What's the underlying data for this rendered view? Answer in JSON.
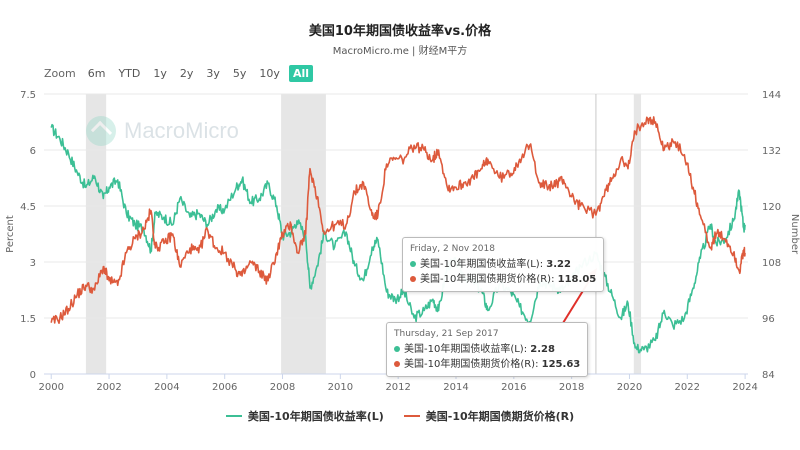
{
  "title": "美国10年期国债收益率vs.价格",
  "subtitle": "MacroMicro.me | 财经M平方",
  "watermark": "MacroMicro",
  "zoom": {
    "label": "Zoom",
    "buttons": [
      "6m",
      "YTD",
      "1y",
      "2y",
      "3y",
      "5y",
      "10y",
      "All"
    ],
    "active": "All"
  },
  "colors": {
    "yield": "#3cbf95",
    "price": "#dd5a3c",
    "recession": "#e6e6e6"
  },
  "tooltips": [
    {
      "date": "Friday, 2 Nov 2018",
      "rows": [
        {
          "label": "美国-10年期国债收益率(L): ",
          "value": "3.22"
        },
        {
          "label": "美国-10年期国债期货价格(R): ",
          "value": "118.05"
        }
      ]
    },
    {
      "date": "Thursday, 21 Sep 2017",
      "rows": [
        {
          "label": "美国-10年期国债收益率(L): ",
          "value": "2.28"
        },
        {
          "label": "美国-10年期国债期货价格(R): ",
          "value": "125.63"
        }
      ]
    }
  ],
  "chart_data": {
    "type": "line",
    "title": "美国10年期国债收益率vs.价格",
    "subtitle": "MacroMicro.me | 财经M平方",
    "ylabel_left": "Percent",
    "ylabel_right": "Number",
    "x_ticks": [
      "2000",
      "2002",
      "2004",
      "2006",
      "2008",
      "2010",
      "2012",
      "2014",
      "2016",
      "2018",
      "2020",
      "2022",
      "2024"
    ],
    "y_left_ticks": [
      "0",
      "1.5",
      "3",
      "4.5",
      "6",
      "7.5"
    ],
    "y_right_ticks": [
      "84",
      "96",
      "108",
      "120",
      "132",
      "144"
    ],
    "y_left_range": [
      0,
      7.5
    ],
    "y_right_range": [
      84,
      144
    ],
    "x_range": [
      1999.75,
      2024.1
    ],
    "recession_bands": [
      [
        2001.2,
        2001.9
      ],
      [
        2007.95,
        2009.5
      ],
      [
        2020.15,
        2020.4
      ]
    ],
    "legend_position": "bottom",
    "series": [
      {
        "name": "美国-10年期国债收益率(L)",
        "axis": "left",
        "points": [
          [
            2000.0,
            6.6
          ],
          [
            2000.3,
            6.3
          ],
          [
            2000.6,
            5.9
          ],
          [
            2000.9,
            5.4
          ],
          [
            2001.2,
            5.0
          ],
          [
            2001.5,
            5.3
          ],
          [
            2001.8,
            4.7
          ],
          [
            2002.0,
            5.0
          ],
          [
            2002.3,
            5.2
          ],
          [
            2002.6,
            4.3
          ],
          [
            2002.9,
            4.0
          ],
          [
            2003.2,
            3.9
          ],
          [
            2003.45,
            3.3
          ],
          [
            2003.6,
            4.3
          ],
          [
            2003.9,
            4.2
          ],
          [
            2004.2,
            4.0
          ],
          [
            2004.45,
            4.7
          ],
          [
            2004.8,
            4.2
          ],
          [
            2005.1,
            4.3
          ],
          [
            2005.4,
            4.0
          ],
          [
            2005.7,
            4.4
          ],
          [
            2006.0,
            4.4
          ],
          [
            2006.4,
            5.0
          ],
          [
            2006.6,
            5.2
          ],
          [
            2006.9,
            4.6
          ],
          [
            2007.2,
            4.7
          ],
          [
            2007.5,
            5.1
          ],
          [
            2007.8,
            4.5
          ],
          [
            2008.0,
            3.7
          ],
          [
            2008.3,
            3.8
          ],
          [
            2008.5,
            4.1
          ],
          [
            2008.8,
            3.7
          ],
          [
            2008.95,
            2.3
          ],
          [
            2009.2,
            2.9
          ],
          [
            2009.45,
            3.8
          ],
          [
            2009.8,
            3.4
          ],
          [
            2010.2,
            3.8
          ],
          [
            2010.5,
            2.9
          ],
          [
            2010.8,
            2.5
          ],
          [
            2011.1,
            3.4
          ],
          [
            2011.3,
            3.6
          ],
          [
            2011.6,
            2.2
          ],
          [
            2011.9,
            2.0
          ],
          [
            2012.2,
            2.2
          ],
          [
            2012.55,
            1.5
          ],
          [
            2012.9,
            1.7
          ],
          [
            2013.2,
            2.0
          ],
          [
            2013.4,
            1.7
          ],
          [
            2013.7,
            2.9
          ],
          [
            2014.0,
            3.0
          ],
          [
            2014.3,
            2.6
          ],
          [
            2014.6,
            2.5
          ],
          [
            2014.9,
            2.2
          ],
          [
            2015.1,
            1.7
          ],
          [
            2015.5,
            2.4
          ],
          [
            2015.9,
            2.2
          ],
          [
            2016.2,
            1.8
          ],
          [
            2016.55,
            1.4
          ],
          [
            2016.9,
            2.5
          ],
          [
            2017.2,
            2.4
          ],
          [
            2017.5,
            2.3
          ],
          [
            2017.72,
            2.28
          ],
          [
            2018.0,
            2.5
          ],
          [
            2018.3,
            2.9
          ],
          [
            2018.84,
            3.22
          ],
          [
            2019.1,
            2.7
          ],
          [
            2019.4,
            2.1
          ],
          [
            2019.7,
            1.5
          ],
          [
            2019.95,
            1.9
          ],
          [
            2020.2,
            0.7
          ],
          [
            2020.5,
            0.65
          ],
          [
            2020.9,
            0.9
          ],
          [
            2021.2,
            1.7
          ],
          [
            2021.5,
            1.3
          ],
          [
            2021.9,
            1.5
          ],
          [
            2022.2,
            2.3
          ],
          [
            2022.45,
            3.1
          ],
          [
            2022.8,
            4.0
          ],
          [
            2023.0,
            3.5
          ],
          [
            2023.3,
            3.6
          ],
          [
            2023.6,
            4.1
          ],
          [
            2023.8,
            4.9
          ],
          [
            2023.95,
            3.9
          ],
          [
            2024.0,
            4.0
          ]
        ]
      },
      {
        "name": "美国-10年期国债期货价格(R)",
        "axis": "right",
        "points": [
          [
            2000.0,
            95
          ],
          [
            2000.3,
            96
          ],
          [
            2000.6,
            98
          ],
          [
            2000.9,
            101
          ],
          [
            2001.2,
            103
          ],
          [
            2001.5,
            102
          ],
          [
            2001.8,
            107
          ],
          [
            2002.0,
            104
          ],
          [
            2002.3,
            103
          ],
          [
            2002.6,
            110
          ],
          [
            2002.9,
            113
          ],
          [
            2003.2,
            115
          ],
          [
            2003.45,
            119
          ],
          [
            2003.6,
            111
          ],
          [
            2003.9,
            112
          ],
          [
            2004.2,
            114
          ],
          [
            2004.45,
            107
          ],
          [
            2004.8,
            111
          ],
          [
            2005.1,
            110
          ],
          [
            2005.4,
            115
          ],
          [
            2005.7,
            111
          ],
          [
            2006.0,
            110
          ],
          [
            2006.4,
            106
          ],
          [
            2006.6,
            105
          ],
          [
            2006.9,
            108
          ],
          [
            2007.2,
            106
          ],
          [
            2007.5,
            104
          ],
          [
            2007.8,
            110
          ],
          [
            2008.0,
            114
          ],
          [
            2008.3,
            116
          ],
          [
            2008.5,
            110
          ],
          [
            2008.8,
            114
          ],
          [
            2008.95,
            128
          ],
          [
            2009.2,
            122
          ],
          [
            2009.45,
            114
          ],
          [
            2009.8,
            116
          ],
          [
            2010.2,
            116
          ],
          [
            2010.5,
            123
          ],
          [
            2010.8,
            125
          ],
          [
            2011.1,
            118
          ],
          [
            2011.3,
            118
          ],
          [
            2011.6,
            129
          ],
          [
            2011.9,
            130
          ],
          [
            2012.2,
            130
          ],
          [
            2012.55,
            133
          ],
          [
            2012.9,
            132
          ],
          [
            2013.2,
            130
          ],
          [
            2013.4,
            132
          ],
          [
            2013.7,
            124
          ],
          [
            2014.0,
            124
          ],
          [
            2014.3,
            125
          ],
          [
            2014.6,
            126
          ],
          [
            2014.9,
            128
          ],
          [
            2015.1,
            130
          ],
          [
            2015.5,
            126
          ],
          [
            2015.9,
            127
          ],
          [
            2016.2,
            130
          ],
          [
            2016.55,
            133
          ],
          [
            2016.9,
            125
          ],
          [
            2017.2,
            124
          ],
          [
            2017.5,
            125
          ],
          [
            2017.72,
            125.63
          ],
          [
            2018.0,
            122
          ],
          [
            2018.3,
            120
          ],
          [
            2018.84,
            118.05
          ],
          [
            2019.1,
            122
          ],
          [
            2019.4,
            126
          ],
          [
            2019.7,
            130
          ],
          [
            2019.95,
            128
          ],
          [
            2020.2,
            136
          ],
          [
            2020.6,
            139
          ],
          [
            2020.9,
            138
          ],
          [
            2021.2,
            132
          ],
          [
            2021.5,
            134
          ],
          [
            2021.9,
            131
          ],
          [
            2022.2,
            124
          ],
          [
            2022.45,
            118
          ],
          [
            2022.8,
            111
          ],
          [
            2023.0,
            114
          ],
          [
            2023.3,
            113
          ],
          [
            2023.6,
            110
          ],
          [
            2023.8,
            106
          ],
          [
            2023.95,
            110
          ],
          [
            2024.0,
            110
          ]
        ]
      }
    ]
  }
}
